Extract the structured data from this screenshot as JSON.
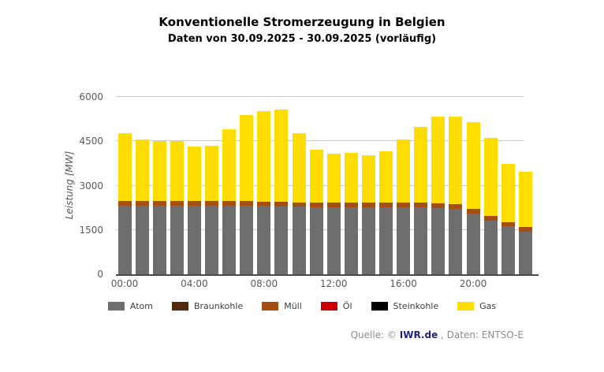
{
  "header": {
    "title": "Konventionelle Stromerzeugung in Belgien",
    "subtitle": "Daten von 30.09.2025 - 30.09.2025 (vorläufig)"
  },
  "footer": {
    "source_prefix": "Quelle: © ",
    "source_link": "IWR.de",
    "source_suffix": " , Daten: ENTSO-E"
  },
  "chart_data": {
    "type": "bar",
    "stacked": true,
    "title": "Konventionelle Stromerzeugung in Belgien",
    "subtitle": "Daten von 30.09.2025 - 30.09.2025 (vorläufig)",
    "xlabel": "",
    "ylabel": "Leistung [MW]",
    "ylim": [
      0,
      6000
    ],
    "yticks": [
      0,
      1500,
      3000,
      4500,
      6000
    ],
    "xtick_every": 4,
    "grid": true,
    "legend_position": "bottom",
    "categories": [
      "00:00",
      "01:00",
      "02:00",
      "03:00",
      "04:00",
      "05:00",
      "06:00",
      "07:00",
      "08:00",
      "09:00",
      "10:00",
      "11:00",
      "12:00",
      "13:00",
      "14:00",
      "15:00",
      "16:00",
      "17:00",
      "18:00",
      "19:00",
      "20:00",
      "21:00",
      "22:00",
      "23:00"
    ],
    "series": [
      {
        "name": "Atom",
        "color": "#6e6e6e",
        "values": [
          2330,
          2320,
          2320,
          2320,
          2320,
          2320,
          2330,
          2330,
          2310,
          2300,
          2290,
          2280,
          2280,
          2280,
          2280,
          2280,
          2280,
          2270,
          2250,
          2220,
          2060,
          1820,
          1620,
          1450
        ]
      },
      {
        "name": "Braunkohle",
        "color": "#552a0c",
        "values": [
          0,
          0,
          0,
          0,
          0,
          0,
          0,
          0,
          0,
          0,
          0,
          0,
          0,
          0,
          0,
          0,
          0,
          0,
          0,
          0,
          0,
          0,
          0,
          0
        ]
      },
      {
        "name": "Müll",
        "color": "#a54d12",
        "values": [
          150,
          150,
          150,
          150,
          150,
          150,
          150,
          150,
          150,
          150,
          150,
          150,
          150,
          150,
          150,
          150,
          150,
          150,
          150,
          150,
          150,
          150,
          150,
          150
        ]
      },
      {
        "name": "Öl",
        "color": "#cc0000",
        "values": [
          0,
          0,
          0,
          0,
          0,
          0,
          0,
          0,
          0,
          0,
          0,
          0,
          0,
          0,
          0,
          0,
          0,
          0,
          0,
          0,
          0,
          0,
          0,
          0
        ]
      },
      {
        "name": "Steinkohle",
        "color": "#000000",
        "values": [
          0,
          0,
          0,
          0,
          0,
          0,
          0,
          0,
          0,
          0,
          0,
          0,
          0,
          0,
          0,
          0,
          0,
          0,
          0,
          0,
          0,
          0,
          0,
          0
        ]
      },
      {
        "name": "Gas",
        "color": "#ffdd00",
        "values": [
          2290,
          2080,
          2030,
          2030,
          1860,
          1890,
          2420,
          2920,
          3060,
          3120,
          2340,
          1790,
          1660,
          1690,
          1610,
          1730,
          2140,
          2570,
          2930,
          2970,
          2930,
          2650,
          1960,
          1860
        ]
      }
    ]
  }
}
